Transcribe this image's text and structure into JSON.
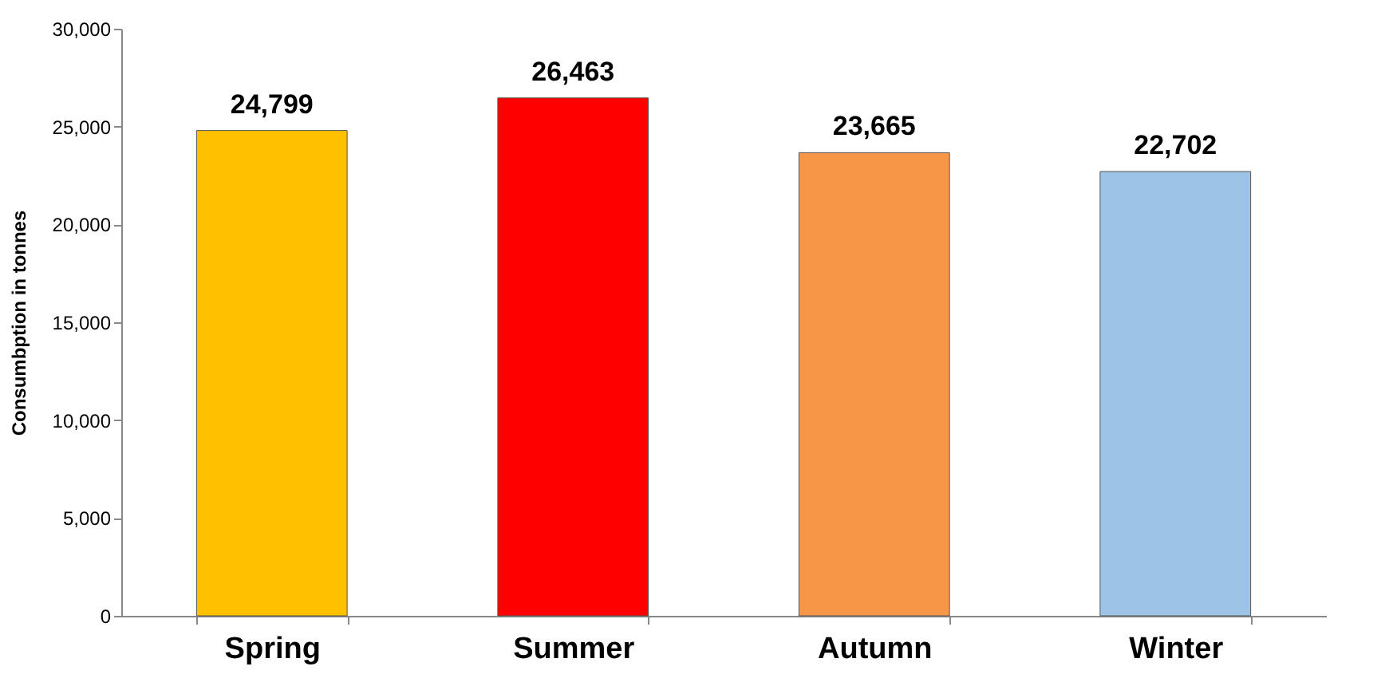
{
  "chart_data": {
    "type": "bar",
    "ylabel": "Consumbption in tonnes",
    "categories": [
      "Spring",
      "Summer",
      "Autumn",
      "Winter"
    ],
    "values": [
      24799,
      26463,
      23665,
      22702
    ],
    "value_labels": [
      "24,799",
      "26,463",
      "23,665",
      "22,702"
    ],
    "colors": [
      "#ffc000",
      "#ff0000",
      "#f79646",
      "#9dc3e6"
    ],
    "ylim": [
      0,
      30000
    ],
    "yticks": [
      0,
      {
        "value": 5000,
        "label": "5,000"
      },
      {
        "value": 10000,
        "label": "10,000"
      },
      {
        "value": 15000,
        "label": "15,000"
      },
      {
        "value": 20000,
        "label": "20,000"
      },
      {
        "value": 25000,
        "label": "25,000"
      },
      {
        "value": 30000,
        "label": "30,000"
      }
    ],
    "grid": false
  }
}
